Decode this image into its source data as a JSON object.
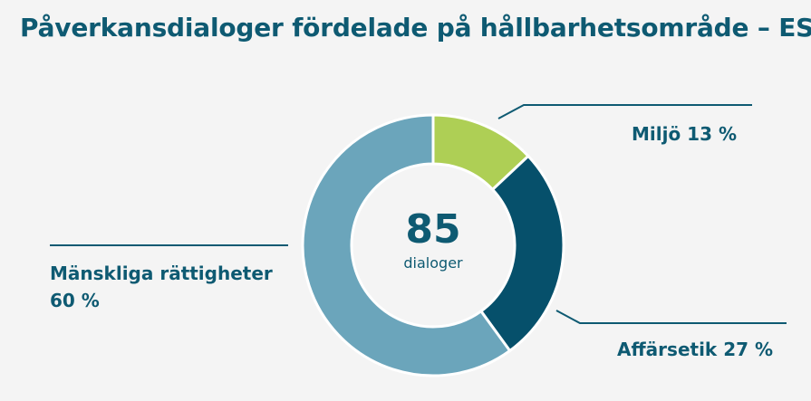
{
  "title": "Påverkansdialoger fördelade på hållbarhetsområde – ESG",
  "center": {
    "value": "85",
    "unit": "dialoger"
  },
  "chart_data": {
    "type": "pie",
    "variant": "donut",
    "total": 85,
    "series": [
      {
        "name": "Miljö",
        "value": 13,
        "label": "Miljö 13 %",
        "color": "#aecf55"
      },
      {
        "name": "Affärsetik",
        "value": 27,
        "label": "Affärsetik 27 %",
        "color": "#06506b"
      },
      {
        "name": "Mänskliga rättigheter",
        "value": 60,
        "label_line1": "Mänskliga rättigheter",
        "label_line2": "60 %",
        "color": "#6ba5bb"
      }
    ]
  }
}
